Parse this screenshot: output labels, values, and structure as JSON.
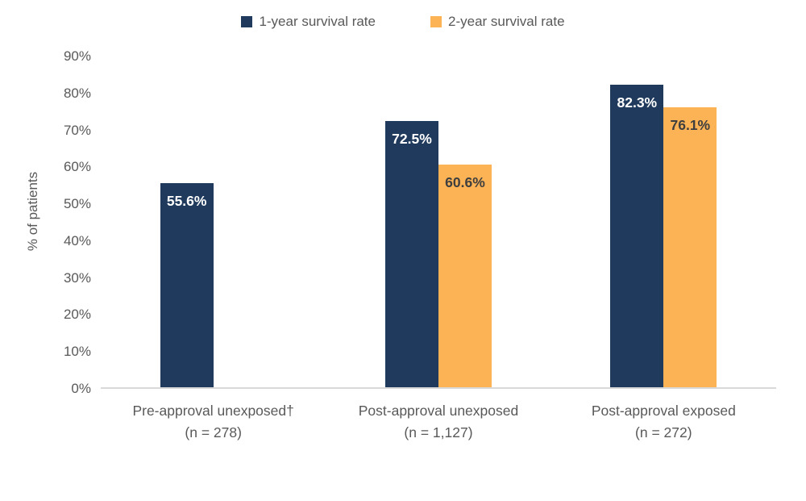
{
  "chart_data": {
    "type": "bar",
    "title": "",
    "xlabel": "",
    "ylabel": "% of patients",
    "ylim": [
      0,
      90
    ],
    "yticks": [
      "0%",
      "10%",
      "20%",
      "30%",
      "40%",
      "50%",
      "60%",
      "70%",
      "80%",
      "90%"
    ],
    "grid": false,
    "legend_position": "top-center",
    "categories": [
      {
        "label": "Pre-approval unexposed†",
        "n_label": "(n = 278)"
      },
      {
        "label": "Post-approval unexposed",
        "n_label": "(n = 1,127)"
      },
      {
        "label": "Post-approval exposed",
        "n_label": "(n = 272)"
      }
    ],
    "series": [
      {
        "name": "1-year survival rate",
        "color": "#1f3a5c",
        "label_color": "#ffffff",
        "values": [
          55.6,
          72.5,
          82.3
        ],
        "data_labels": [
          "55.6%",
          "72.5%",
          "82.3%"
        ]
      },
      {
        "name": "2-year survival rate",
        "color": "#fbb355",
        "label_color": "#3f3f3f",
        "values": [
          null,
          60.6,
          76.1
        ],
        "data_labels": [
          null,
          "60.6%",
          "76.1%"
        ]
      }
    ],
    "colors": {
      "axis_line": "#d9d9d9",
      "axis_text": "#595959",
      "background": "#ffffff"
    }
  }
}
